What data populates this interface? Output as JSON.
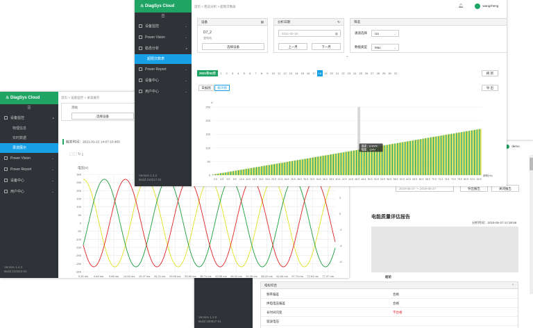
{
  "win_back": {
    "version": "Version 1.1.0",
    "build": "Build 190917-01",
    "user": "demo",
    "date_range": "2019-05-27 ～ 2019-05-27",
    "export_btn": "导出报告",
    "close_btn": "关闭报告",
    "report_title": "电能质量评估报告",
    "analysis_time": "分析时间：2019-05-27 17:38:59",
    "conclusion_label": "结论",
    "section": "指标综合",
    "rows": [
      {
        "name": "频率偏差",
        "result": "合格"
      },
      {
        "name": "供电电压偏差",
        "result": "合格"
      },
      {
        "name": "长时间闪变",
        "result": "不合格"
      },
      {
        "name": "谐波电压",
        "result": ""
      }
    ]
  },
  "win_left": {
    "logo": "DiagSys Cloud",
    "menu": [
      {
        "label": "设备监控",
        "expanded": true,
        "children": [
          "物理信息",
          "实时数据",
          "录波展示"
        ]
      },
      {
        "label": "Power Vision"
      },
      {
        "label": "Power Report"
      },
      {
        "label": "设备中心"
      },
      {
        "label": "用户中心"
      }
    ],
    "active_child": "录波展示",
    "version": "Version 1.4.2",
    "build": "Build 210224-01",
    "breadcrumb": [
      "首页",
      "设备监控",
      "录波展示"
    ],
    "device_label": "测站",
    "select_device": "选择设备",
    "trigger_time": "触发时间：2021-01-22 14:07:10.465",
    "ylabel": "电压(V)",
    "chart_data": {
      "type": "line",
      "title": "",
      "ylabel": "电压(V)",
      "ylim": [
        -300,
        300
      ],
      "yticks": [
        300,
        250,
        200,
        150,
        100,
        50,
        0,
        -50,
        -100,
        -150,
        -200,
        -250,
        -300
      ],
      "y2ticks": [
        4,
        2,
        0,
        -2,
        -4,
        -6
      ],
      "xticks": [
        "0.00 ms",
        "4.84 ms",
        "9.68 ms",
        "14.53 ms",
        "19.37 ms",
        "24.21 ms",
        "29.05 ms",
        "33.89 ms",
        "38.74 ms",
        "43.58 ms",
        "48.42 ms",
        "53.26 ms",
        "58.10 ms",
        "62.94 ms",
        "67.79 ms",
        "72.63 ms",
        "77.47 ms"
      ],
      "amplitude": 270,
      "period_ms": 20,
      "series": [
        {
          "phase_deg": 90,
          "color": "#e0e020"
        },
        {
          "phase_deg": -30,
          "color": "#1a9c3c"
        },
        {
          "phase_deg": 210,
          "color": "#e02020"
        }
      ],
      "color_series4": "#c8c800"
    }
  },
  "win_top": {
    "logo": "DiagSys Cloud",
    "menu": [
      {
        "label": "设备监控"
      },
      {
        "label": "Power Vision"
      },
      {
        "label": "稳态分析",
        "expanded": true,
        "children": [
          "超限次数表"
        ]
      },
      {
        "label": "Power Report"
      },
      {
        "label": "设备中心"
      },
      {
        "label": "用户中心"
      }
    ],
    "active_child": "超限次数表",
    "version": "Version 1.4.2",
    "build": "Build 210217-01",
    "breadcrumb": [
      "首页",
      "稳态分析",
      "超限次数表"
    ],
    "user": "wangzheng",
    "device_title": "设备",
    "device_name": "D7_2",
    "device_sub": "变电站",
    "select_device": "选择设备",
    "date_title": "分析日期",
    "date_value": "2021-02-18",
    "prev_month": "上一月",
    "next_month": "下一月",
    "filter_title": "筛选",
    "channel_label": "通道选择",
    "channel_value": "Ua",
    "type_label": "数据类型",
    "type_value": "Max",
    "month_label": "2021年02月",
    "days": [
      "1",
      "2",
      "3",
      "4",
      "5",
      "6",
      "7",
      "8",
      "9",
      "10",
      "11",
      "12",
      "13",
      "14",
      "15",
      "16",
      "17",
      "18",
      "19",
      "20",
      "21",
      "22",
      "23",
      "24",
      "25",
      "26",
      "27",
      "28",
      "29",
      "30",
      "31"
    ],
    "selected_day": "18",
    "refresh_btn": "刷 新",
    "tab_daily": "日报图",
    "tab_stats": "统计图",
    "export_btn": "导 出",
    "tooltip_line1": "描述：6-9h/%",
    "tooltip_line2": "幅值：124V",
    "xaxis_label": "频率(Hz)",
    "chart_data": {
      "type": "bar",
      "title": "",
      "ylabel": "V",
      "ylim": [
        0,
        250
      ],
      "yticks": [
        250,
        200,
        150,
        100,
        50,
        0
      ],
      "xticks": [
        "2.5",
        "4.5",
        "6.5",
        "8.5",
        "10.5",
        "12.5",
        "14.5",
        "16.5",
        "18.5",
        "20.5",
        "22.5",
        "24.5",
        "26.5",
        "28.5",
        "30.5",
        "32.5",
        "34.5",
        "36.5",
        "38.5",
        "40.5",
        "42.5",
        "44.5",
        "46.5",
        "48.5",
        "50.5",
        "52.5",
        "54.5",
        "56.5",
        "58.5",
        "60.5",
        "62.5",
        "64.5",
        "66.5",
        "68.5",
        "70.5",
        "72.5",
        "74.5",
        "76.5",
        "78.5",
        "80.5",
        "82.5",
        "84.5"
      ],
      "bar_count": 210,
      "start_value": 2,
      "end_value": 170,
      "highlight_index": 114,
      "colors": [
        "#1a9c3c",
        "#d4d420"
      ]
    }
  }
}
